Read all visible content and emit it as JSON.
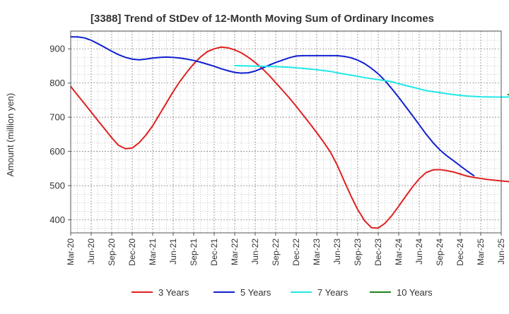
{
  "chart_data": {
    "type": "line",
    "title": "[3388]  Trend of StDev of 12-Month Moving Sum of Ordinary Incomes",
    "ylabel": "Amount (million yen)",
    "xlabel": "",
    "x_ticks": [
      "Mar-20",
      "Jun-20",
      "Sep-20",
      "Dec-20",
      "Mar-21",
      "Jun-21",
      "Sep-21",
      "Dec-21",
      "Mar-22",
      "Jun-22",
      "Sep-22",
      "Dec-22",
      "Mar-23",
      "Jun-23",
      "Sep-23",
      "Dec-23",
      "Mar-24",
      "Jun-24",
      "Sep-24",
      "Dec-24",
      "Mar-25",
      "Jun-25"
    ],
    "y_ticks": [
      400,
      500,
      600,
      700,
      800,
      900
    ],
    "ylim": [
      362,
      952
    ],
    "x_index_range": [
      0,
      21
    ],
    "grid": true,
    "legend_position": "bottom",
    "series": [
      {
        "name": "3 Years",
        "color": "#e02020",
        "points": [
          [
            0,
            790
          ],
          [
            0.33,
            765
          ],
          [
            0.67,
            740
          ],
          [
            1,
            715
          ],
          [
            1.33,
            690
          ],
          [
            1.67,
            665
          ],
          [
            2,
            640
          ],
          [
            2.33,
            618
          ],
          [
            2.67,
            608
          ],
          [
            3,
            610
          ],
          [
            3.33,
            625
          ],
          [
            3.67,
            648
          ],
          [
            4,
            675
          ],
          [
            4.33,
            708
          ],
          [
            4.67,
            742
          ],
          [
            5,
            775
          ],
          [
            5.33,
            805
          ],
          [
            5.67,
            832
          ],
          [
            6,
            856
          ],
          [
            6.33,
            876
          ],
          [
            6.67,
            892
          ],
          [
            7,
            900
          ],
          [
            7.33,
            905
          ],
          [
            7.67,
            903
          ],
          [
            8,
            897
          ],
          [
            8.33,
            888
          ],
          [
            8.67,
            875
          ],
          [
            9,
            860
          ],
          [
            9.33,
            843
          ],
          [
            9.67,
            823
          ],
          [
            10,
            801
          ],
          [
            10.33,
            779
          ],
          [
            10.67,
            756
          ],
          [
            11,
            732
          ],
          [
            11.33,
            707
          ],
          [
            11.67,
            681
          ],
          [
            12,
            655
          ],
          [
            12.33,
            628
          ],
          [
            12.67,
            598
          ],
          [
            13,
            560
          ],
          [
            13.33,
            515
          ],
          [
            13.67,
            470
          ],
          [
            14,
            430
          ],
          [
            14.33,
            398
          ],
          [
            14.67,
            377
          ],
          [
            15,
            376
          ],
          [
            15.33,
            390
          ],
          [
            15.67,
            413
          ],
          [
            16,
            440
          ],
          [
            16.33,
            468
          ],
          [
            16.67,
            496
          ],
          [
            17,
            520
          ],
          [
            17.33,
            538
          ],
          [
            17.67,
            546
          ],
          [
            18,
            547
          ],
          [
            18.33,
            544
          ],
          [
            18.67,
            540
          ],
          [
            19,
            534
          ],
          [
            19.33,
            528
          ],
          [
            19.67,
            524
          ],
          [
            20,
            521
          ],
          [
            20.33,
            518
          ],
          [
            20.67,
            516
          ],
          [
            21,
            514
          ],
          [
            21.33,
            512
          ],
          [
            21.67,
            511
          ],
          [
            22,
            512
          ],
          [
            22.33,
            514
          ]
        ]
      },
      {
        "name": "5 Years",
        "color": "#1020d0",
        "points": [
          [
            0,
            935
          ],
          [
            0.33,
            935
          ],
          [
            0.67,
            932
          ],
          [
            1,
            925
          ],
          [
            1.33,
            915
          ],
          [
            1.67,
            904
          ],
          [
            2,
            893
          ],
          [
            2.33,
            883
          ],
          [
            2.67,
            875
          ],
          [
            3,
            870
          ],
          [
            3.33,
            868
          ],
          [
            3.67,
            870
          ],
          [
            4,
            873
          ],
          [
            4.33,
            875
          ],
          [
            4.67,
            876
          ],
          [
            5,
            875
          ],
          [
            5.33,
            873
          ],
          [
            5.67,
            870
          ],
          [
            6,
            866
          ],
          [
            6.33,
            861
          ],
          [
            6.67,
            855
          ],
          [
            7,
            849
          ],
          [
            7.33,
            842
          ],
          [
            7.67,
            836
          ],
          [
            8,
            831
          ],
          [
            8.33,
            829
          ],
          [
            8.67,
            830
          ],
          [
            9,
            835
          ],
          [
            9.33,
            843
          ],
          [
            9.67,
            852
          ],
          [
            10,
            860
          ],
          [
            10.33,
            867
          ],
          [
            10.67,
            874
          ],
          [
            11,
            879
          ],
          [
            11.33,
            880
          ],
          [
            11.67,
            880
          ],
          [
            12,
            880
          ],
          [
            12.33,
            880
          ],
          [
            12.67,
            880
          ],
          [
            13,
            880
          ],
          [
            13.33,
            878
          ],
          [
            13.67,
            874
          ],
          [
            14,
            867
          ],
          [
            14.33,
            857
          ],
          [
            14.67,
            843
          ],
          [
            15,
            827
          ],
          [
            15.33,
            807
          ],
          [
            15.67,
            783
          ],
          [
            16,
            758
          ],
          [
            16.33,
            732
          ],
          [
            16.67,
            705
          ],
          [
            17,
            678
          ],
          [
            17.33,
            651
          ],
          [
            17.67,
            626
          ],
          [
            18,
            605
          ],
          [
            18.33,
            588
          ],
          [
            18.67,
            573
          ],
          [
            19,
            558
          ],
          [
            19.33,
            543
          ],
          [
            19.67,
            529
          ]
        ]
      },
      {
        "name": "7 Years",
        "color": "#20e8e8",
        "points": [
          [
            8,
            851
          ],
          [
            8.67,
            850
          ],
          [
            9.33,
            849
          ],
          [
            10,
            848
          ],
          [
            10.67,
            846
          ],
          [
            11.33,
            843
          ],
          [
            12,
            839
          ],
          [
            12.67,
            834
          ],
          [
            13,
            830
          ],
          [
            13.67,
            823
          ],
          [
            14.33,
            816
          ],
          [
            15,
            810
          ],
          [
            15.67,
            804
          ],
          [
            16,
            798
          ],
          [
            16.67,
            788
          ],
          [
            17.33,
            778
          ],
          [
            18,
            772
          ],
          [
            18.67,
            766
          ],
          [
            19.33,
            762
          ],
          [
            20,
            760
          ],
          [
            20.67,
            759
          ],
          [
            21.33,
            759
          ],
          [
            22.33,
            760
          ]
        ]
      },
      {
        "name": "10 Years",
        "color": "#208020",
        "points": [
          [
            21.33,
            766
          ],
          [
            22.33,
            766
          ]
        ]
      }
    ]
  }
}
